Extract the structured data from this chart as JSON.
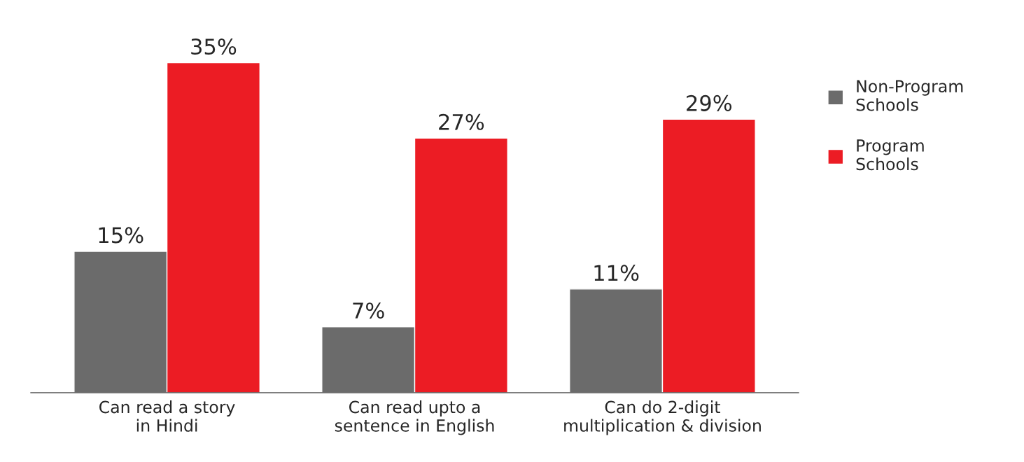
{
  "chart_data": {
    "type": "bar",
    "categories": [
      "Can read a story\nin Hindi",
      "Can read upto a\nsentence in English",
      "Can do 2-digit\nmultiplication & division"
    ],
    "series": [
      {
        "name": "Non-Program\nSchools",
        "color": "#6b6b6b",
        "values": [
          15,
          7,
          11
        ],
        "value_labels": [
          "15%",
          "7%",
          "11%"
        ]
      },
      {
        "name": "Program\nSchools",
        "color": "#ec1c24",
        "values": [
          35,
          27,
          29
        ],
        "value_labels": [
          "35%",
          "27%",
          "29%"
        ]
      }
    ],
    "legend": "right",
    "grid": false
  }
}
